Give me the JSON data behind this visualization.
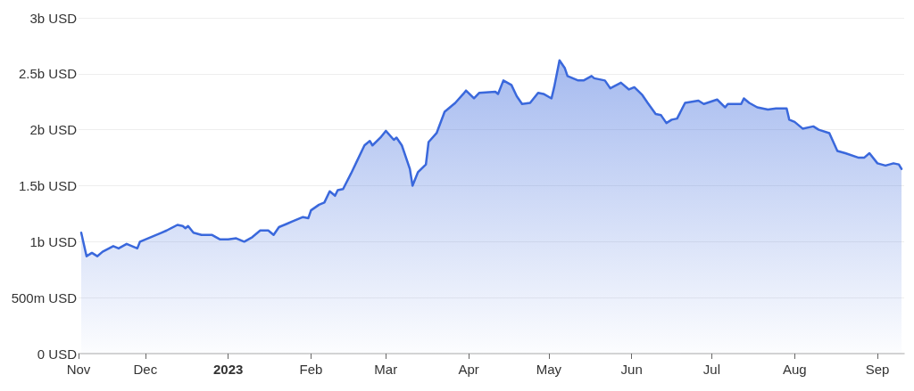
{
  "chart_data": {
    "type": "area",
    "x": [
      "2022-11-07",
      "2022-11-09",
      "2022-11-11",
      "2022-11-13",
      "2022-11-15",
      "2022-11-19",
      "2022-11-21",
      "2022-11-24",
      "2022-11-28",
      "2022-11-29",
      "2022-12-02",
      "2022-12-04",
      "2022-12-07",
      "2022-12-09",
      "2022-12-13",
      "2022-12-15",
      "2022-12-16",
      "2022-12-17",
      "2022-12-19",
      "2022-12-22",
      "2022-12-26",
      "2022-12-29",
      "2023-01-01",
      "2023-01-04",
      "2023-01-07",
      "2023-01-10",
      "2023-01-13",
      "2023-01-16",
      "2023-01-18",
      "2023-01-20",
      "2023-01-23",
      "2023-01-25",
      "2023-01-29",
      "2023-01-31",
      "2023-02-01",
      "2023-02-04",
      "2023-02-06",
      "2023-02-08",
      "2023-02-10",
      "2023-02-11",
      "2023-02-13",
      "2023-02-16",
      "2023-02-18",
      "2023-02-21",
      "2023-02-23",
      "2023-02-24",
      "2023-02-27",
      "2023-03-01",
      "2023-03-04",
      "2023-03-05",
      "2023-03-07",
      "2023-03-10",
      "2023-03-11",
      "2023-03-13",
      "2023-03-16",
      "2023-03-17",
      "2023-03-20",
      "2023-03-23",
      "2023-03-27",
      "2023-03-30",
      "2023-03-31",
      "2023-04-03",
      "2023-04-05",
      "2023-04-11",
      "2023-04-12",
      "2023-04-14",
      "2023-04-17",
      "2023-04-19",
      "2023-04-21",
      "2023-04-24",
      "2023-04-27",
      "2023-04-29",
      "2023-05-02",
      "2023-05-03",
      "2023-05-05",
      "2023-05-07",
      "2023-05-08",
      "2023-05-12",
      "2023-05-14",
      "2023-05-17",
      "2023-05-18",
      "2023-05-22",
      "2023-05-24",
      "2023-05-28",
      "2023-05-31",
      "2023-06-02",
      "2023-06-05",
      "2023-06-07",
      "2023-06-10",
      "2023-06-12",
      "2023-06-14",
      "2023-06-16",
      "2023-06-18",
      "2023-06-21",
      "2023-06-26",
      "2023-06-28",
      "2023-07-03",
      "2023-07-06",
      "2023-07-07",
      "2023-07-12",
      "2023-07-13",
      "2023-07-15",
      "2023-07-18",
      "2023-07-22",
      "2023-07-25",
      "2023-07-29",
      "2023-07-30",
      "2023-08-01",
      "2023-08-04",
      "2023-08-08",
      "2023-08-10",
      "2023-08-14",
      "2023-08-17",
      "2023-08-20",
      "2023-08-25",
      "2023-08-27",
      "2023-08-29",
      "2023-09-01",
      "2023-09-04",
      "2023-09-07",
      "2023-09-09",
      "2023-09-10"
    ],
    "series": [
      {
        "color": "#3a68dc",
        "values": [
          1080000000,
          870000000,
          900000000,
          870000000,
          910000000,
          960000000,
          940000000,
          980000000,
          940000000,
          1000000000,
          1030000000,
          1050000000,
          1080000000,
          1100000000,
          1150000000,
          1140000000,
          1120000000,
          1140000000,
          1080000000,
          1060000000,
          1060000000,
          1020000000,
          1020000000,
          1030000000,
          1000000000,
          1040000000,
          1100000000,
          1100000000,
          1060000000,
          1130000000,
          1160000000,
          1180000000,
          1220000000,
          1210000000,
          1280000000,
          1330000000,
          1350000000,
          1450000000,
          1410000000,
          1460000000,
          1470000000,
          1610000000,
          1710000000,
          1860000000,
          1900000000,
          1860000000,
          1930000000,
          1990000000,
          1910000000,
          1930000000,
          1860000000,
          1650000000,
          1500000000,
          1620000000,
          1690000000,
          1890000000,
          1970000000,
          2160000000,
          2240000000,
          2320000000,
          2350000000,
          2280000000,
          2330000000,
          2340000000,
          2320000000,
          2440000000,
          2400000000,
          2300000000,
          2230000000,
          2240000000,
          2330000000,
          2320000000,
          2280000000,
          2380000000,
          2620000000,
          2550000000,
          2480000000,
          2440000000,
          2440000000,
          2480000000,
          2460000000,
          2440000000,
          2370000000,
          2420000000,
          2360000000,
          2380000000,
          2310000000,
          2240000000,
          2140000000,
          2130000000,
          2060000000,
          2090000000,
          2100000000,
          2240000000,
          2260000000,
          2230000000,
          2270000000,
          2200000000,
          2230000000,
          2230000000,
          2280000000,
          2240000000,
          2200000000,
          2180000000,
          2190000000,
          2190000000,
          2090000000,
          2070000000,
          2010000000,
          2030000000,
          2000000000,
          1970000000,
          1810000000,
          1790000000,
          1750000000,
          1750000000,
          1790000000,
          1700000000,
          1680000000,
          1700000000,
          1690000000,
          1650000000
        ]
      }
    ],
    "xlim": [
      "2022-11-06",
      "2023-09-11"
    ],
    "xticks": [
      {
        "value": "2022-11-06",
        "label": "Nov"
      },
      {
        "value": "2022-12-01",
        "label": "Dec"
      },
      {
        "value": "2023-01-01",
        "label": "2023"
      },
      {
        "value": "2023-02-01",
        "label": "Feb"
      },
      {
        "value": "2023-03-01",
        "label": "Mar"
      },
      {
        "value": "2023-04-01",
        "label": "Apr"
      },
      {
        "value": "2023-05-01",
        "label": "May"
      },
      {
        "value": "2023-06-01",
        "label": "Jun"
      },
      {
        "value": "2023-07-01",
        "label": "Jul"
      },
      {
        "value": "2023-08-01",
        "label": "Aug"
      },
      {
        "value": "2023-09-01",
        "label": "Sep"
      }
    ],
    "ylim": [
      0,
      3000000000
    ],
    "yticks": [
      {
        "value": 0,
        "label": "0 USD"
      },
      {
        "value": 500000000,
        "label": "500m USD"
      },
      {
        "value": 1000000000,
        "label": "1b USD"
      },
      {
        "value": 1500000000,
        "label": "1.5b USD"
      },
      {
        "value": 2000000000,
        "label": "2b USD"
      },
      {
        "value": 2500000000,
        "label": "2.5b USD"
      },
      {
        "value": 3000000000,
        "label": "3b USD"
      }
    ],
    "grid": "y",
    "marker": "none"
  }
}
